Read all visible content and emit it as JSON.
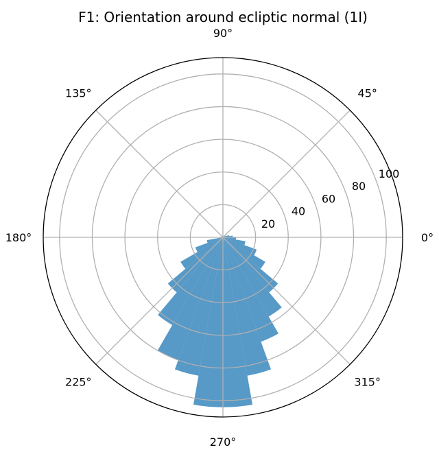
{
  "chart_data": {
    "type": "bar",
    "projection": "polar",
    "title": "F1: Orientation around ecliptic normal (1I)",
    "angle_unit": "degrees",
    "theta_tick_labels": [
      "0°",
      "45°",
      "90°",
      "135°",
      "180°",
      "225°",
      "270°",
      "315°"
    ],
    "r_tick_labels": [
      "20",
      "40",
      "60",
      "80",
      "100"
    ],
    "rlim": [
      0,
      110
    ],
    "grid": true,
    "bar_color": "#1f77b4",
    "bar_alpha": 0.75,
    "bin_width_deg": 10,
    "bars": {
      "theta_center_deg": [
        5,
        15,
        25,
        195,
        205,
        215,
        225,
        235,
        245,
        255,
        265,
        275,
        285,
        295,
        305,
        315,
        325,
        335,
        345,
        355
      ],
      "values": [
        6,
        4,
        2,
        10,
        18,
        30,
        44,
        62,
        80,
        86,
        104,
        104,
        86,
        68,
        56,
        44,
        30,
        22,
        14,
        8
      ]
    }
  }
}
